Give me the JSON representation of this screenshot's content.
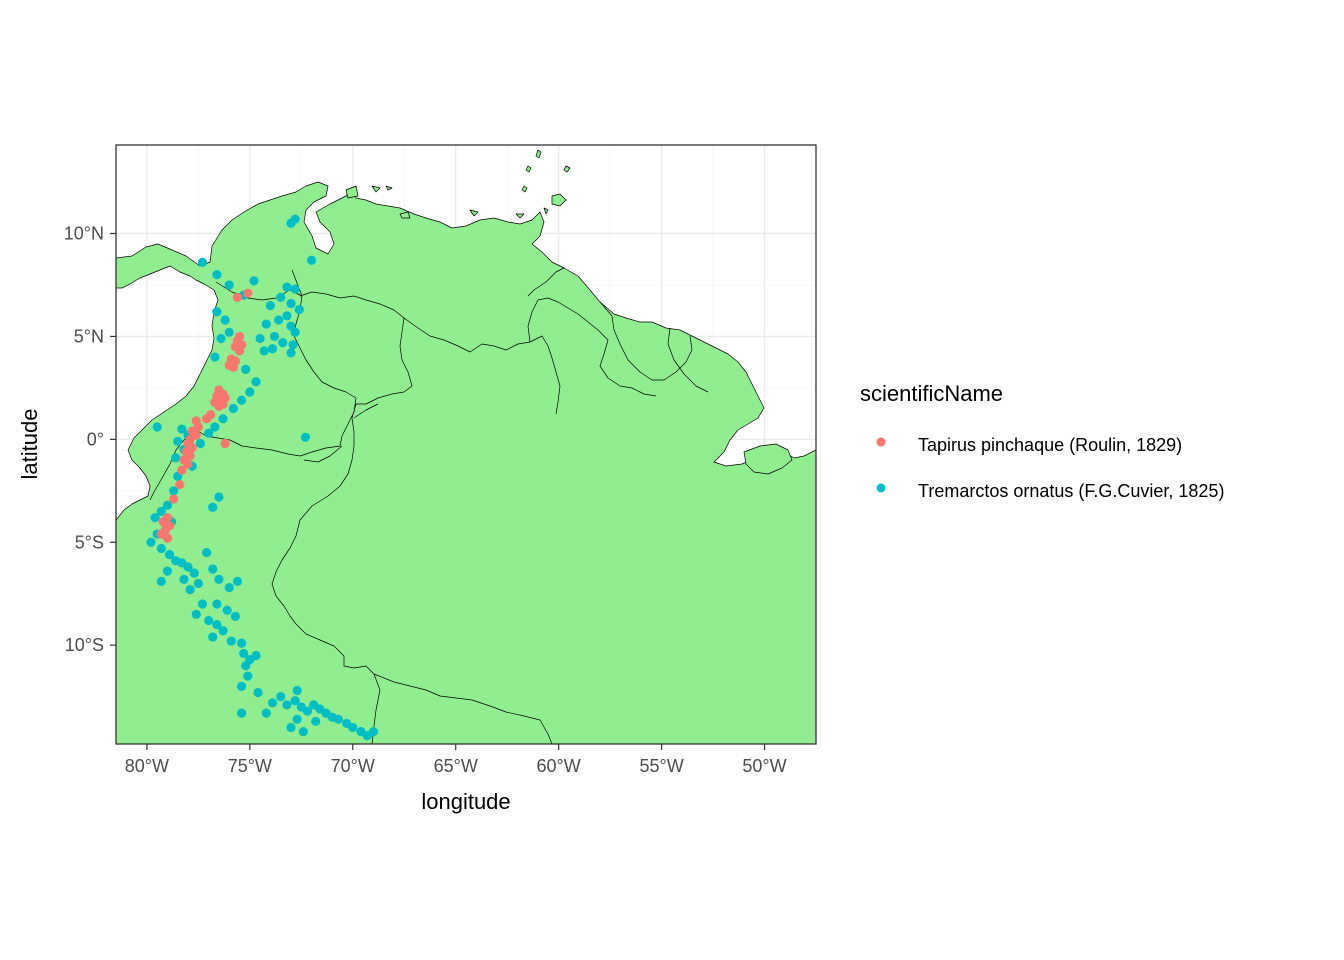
{
  "chart_data": {
    "type": "scatter",
    "xlabel": "longitude",
    "ylabel": "latitude",
    "xlim": [
      -81.5,
      -47.5
    ],
    "ylim": [
      -14.8,
      14.3
    ],
    "x_ticks": [
      {
        "value": -80,
        "label": "80°W"
      },
      {
        "value": -75,
        "label": "75°W"
      },
      {
        "value": -70,
        "label": "70°W"
      },
      {
        "value": -65,
        "label": "65°W"
      },
      {
        "value": -60,
        "label": "60°W"
      },
      {
        "value": -55,
        "label": "55°W"
      },
      {
        "value": -50,
        "label": "50°W"
      }
    ],
    "y_ticks": [
      {
        "value": 10,
        "label": "10°N"
      },
      {
        "value": 5,
        "label": "5°N"
      },
      {
        "value": 0,
        "label": "0°"
      },
      {
        "value": -5,
        "label": "5°S"
      },
      {
        "value": -10,
        "label": "10°S"
      }
    ],
    "grid": true,
    "land_color": "#90ee90",
    "legend": {
      "title": "scientificName",
      "position": "right"
    },
    "series": [
      {
        "name": "Tapirus pinchaque (Roulin, 1829)",
        "color": "#f8766d",
        "points": [
          [
            -75.6,
            6.9
          ],
          [
            -75.1,
            7.1
          ],
          [
            -75.5,
            5.0
          ],
          [
            -75.6,
            4.8
          ],
          [
            -75.4,
            4.6
          ],
          [
            -75.7,
            4.5
          ],
          [
            -75.5,
            4.3
          ],
          [
            -75.9,
            3.9
          ],
          [
            -75.7,
            3.8
          ],
          [
            -76.0,
            3.6
          ],
          [
            -75.8,
            3.5
          ],
          [
            -76.5,
            2.4
          ],
          [
            -76.3,
            2.2
          ],
          [
            -76.6,
            2.1
          ],
          [
            -76.4,
            1.9
          ],
          [
            -76.2,
            2.0
          ],
          [
            -76.7,
            1.8
          ],
          [
            -76.5,
            1.6
          ],
          [
            -76.3,
            1.7
          ],
          [
            -76.9,
            1.2
          ],
          [
            -77.1,
            1.0
          ],
          [
            -77.6,
            0.9
          ],
          [
            -77.5,
            0.6
          ],
          [
            -77.8,
            0.4
          ],
          [
            -77.6,
            0.2
          ],
          [
            -77.9,
            0.0
          ],
          [
            -78.0,
            -0.2
          ],
          [
            -77.8,
            -0.4
          ],
          [
            -78.1,
            -0.6
          ],
          [
            -77.9,
            -0.8
          ],
          [
            -78.2,
            -1.0
          ],
          [
            -78.0,
            -1.2
          ],
          [
            -78.3,
            -1.5
          ],
          [
            -78.4,
            -2.2
          ],
          [
            -76.2,
            -0.2
          ],
          [
            -78.7,
            -2.9
          ],
          [
            -79.0,
            -3.8
          ],
          [
            -79.2,
            -4.0
          ],
          [
            -78.9,
            -4.2
          ],
          [
            -79.1,
            -4.4
          ],
          [
            -79.3,
            -4.6
          ],
          [
            -79.0,
            -4.8
          ]
        ]
      },
      {
        "name": "Tremarctos ornatus (F.G.Cuvier, 1825)",
        "color": "#00bfc4",
        "points": [
          [
            -72.8,
            10.7
          ],
          [
            -73.0,
            10.5
          ],
          [
            -72.0,
            8.7
          ],
          [
            -77.3,
            8.6
          ],
          [
            -74.8,
            7.7
          ],
          [
            -76.0,
            7.5
          ],
          [
            -73.2,
            7.4
          ],
          [
            -72.8,
            7.3
          ],
          [
            -73.5,
            6.9
          ],
          [
            -74.0,
            6.5
          ],
          [
            -73.0,
            6.6
          ],
          [
            -72.6,
            6.3
          ],
          [
            -73.2,
            6.0
          ],
          [
            -73.6,
            5.8
          ],
          [
            -74.2,
            5.6
          ],
          [
            -73.0,
            5.5
          ],
          [
            -72.8,
            5.2
          ],
          [
            -73.8,
            5.0
          ],
          [
            -74.5,
            4.9
          ],
          [
            -73.4,
            4.7
          ],
          [
            -73.9,
            4.4
          ],
          [
            -72.9,
            4.6
          ],
          [
            -74.3,
            4.3
          ],
          [
            -73.0,
            4.2
          ],
          [
            -76.6,
            6.2
          ],
          [
            -76.2,
            5.8
          ],
          [
            -76.0,
            5.2
          ],
          [
            -76.4,
            4.9
          ],
          [
            -76.7,
            4.0
          ],
          [
            -75.2,
            3.4
          ],
          [
            -74.7,
            2.8
          ],
          [
            -75.0,
            2.3
          ],
          [
            -75.4,
            1.9
          ],
          [
            -75.8,
            1.5
          ],
          [
            -76.3,
            1.0
          ],
          [
            -76.7,
            0.6
          ],
          [
            -77.0,
            0.3
          ],
          [
            -77.4,
            -0.2
          ],
          [
            -78.3,
            0.5
          ],
          [
            -78.0,
            0.2
          ],
          [
            -78.5,
            -0.1
          ],
          [
            -78.2,
            -0.5
          ],
          [
            -78.6,
            -0.9
          ],
          [
            -77.8,
            -1.3
          ],
          [
            -78.5,
            -1.8
          ],
          [
            -79.5,
            0.6
          ],
          [
            -78.7,
            -2.5
          ],
          [
            -79.0,
            -3.2
          ],
          [
            -79.3,
            -3.5
          ],
          [
            -79.6,
            -3.8
          ],
          [
            -78.8,
            -4.0
          ],
          [
            -79.5,
            -4.6
          ],
          [
            -79.8,
            -5.0
          ],
          [
            -79.3,
            -5.3
          ],
          [
            -78.9,
            -5.6
          ],
          [
            -78.6,
            -5.9
          ],
          [
            -78.3,
            -6.0
          ],
          [
            -78.0,
            -6.2
          ],
          [
            -77.7,
            -6.5
          ],
          [
            -78.2,
            -6.8
          ],
          [
            -79.0,
            -6.4
          ],
          [
            -79.3,
            -6.9
          ],
          [
            -77.5,
            -7.0
          ],
          [
            -77.9,
            -7.3
          ],
          [
            -77.1,
            -5.5
          ],
          [
            -76.8,
            -6.3
          ],
          [
            -76.5,
            -6.8
          ],
          [
            -76.0,
            -7.2
          ],
          [
            -75.6,
            -6.9
          ],
          [
            -77.3,
            -8.0
          ],
          [
            -77.6,
            -8.5
          ],
          [
            -77.0,
            -8.8
          ],
          [
            -76.6,
            -8.0
          ],
          [
            -76.1,
            -8.3
          ],
          [
            -75.7,
            -8.6
          ],
          [
            -76.3,
            -9.3
          ],
          [
            -76.8,
            -9.6
          ],
          [
            -75.9,
            -9.8
          ],
          [
            -75.4,
            -9.9
          ],
          [
            -76.6,
            -9.0
          ],
          [
            -75.3,
            -10.4
          ],
          [
            -75.0,
            -10.7
          ],
          [
            -75.2,
            -11.0
          ],
          [
            -74.7,
            -10.5
          ],
          [
            -75.1,
            -11.5
          ],
          [
            -75.4,
            -12.0
          ],
          [
            -74.6,
            -12.3
          ],
          [
            -73.9,
            -12.8
          ],
          [
            -73.5,
            -12.5
          ],
          [
            -73.2,
            -12.9
          ],
          [
            -72.8,
            -12.7
          ],
          [
            -72.5,
            -13.0
          ],
          [
            -72.2,
            -13.2
          ],
          [
            -71.9,
            -12.9
          ],
          [
            -71.6,
            -13.1
          ],
          [
            -71.3,
            -13.3
          ],
          [
            -71.0,
            -13.5
          ],
          [
            -70.7,
            -13.6
          ],
          [
            -70.3,
            -13.8
          ],
          [
            -70.0,
            -14.0
          ],
          [
            -69.6,
            -14.2
          ],
          [
            -69.3,
            -14.4
          ],
          [
            -69.0,
            -14.2
          ],
          [
            -72.7,
            -13.6
          ],
          [
            -73.0,
            -14.0
          ],
          [
            -72.4,
            -14.2
          ],
          [
            -71.8,
            -13.7
          ],
          [
            -72.7,
            -12.2
          ],
          [
            -74.2,
            -13.3
          ],
          [
            -75.4,
            -13.3
          ],
          [
            -76.5,
            -2.8
          ],
          [
            -76.8,
            -3.3
          ],
          [
            -72.3,
            0.1
          ],
          [
            -76.6,
            8.0
          ],
          [
            -75.3,
            7.0
          ]
        ]
      }
    ]
  }
}
